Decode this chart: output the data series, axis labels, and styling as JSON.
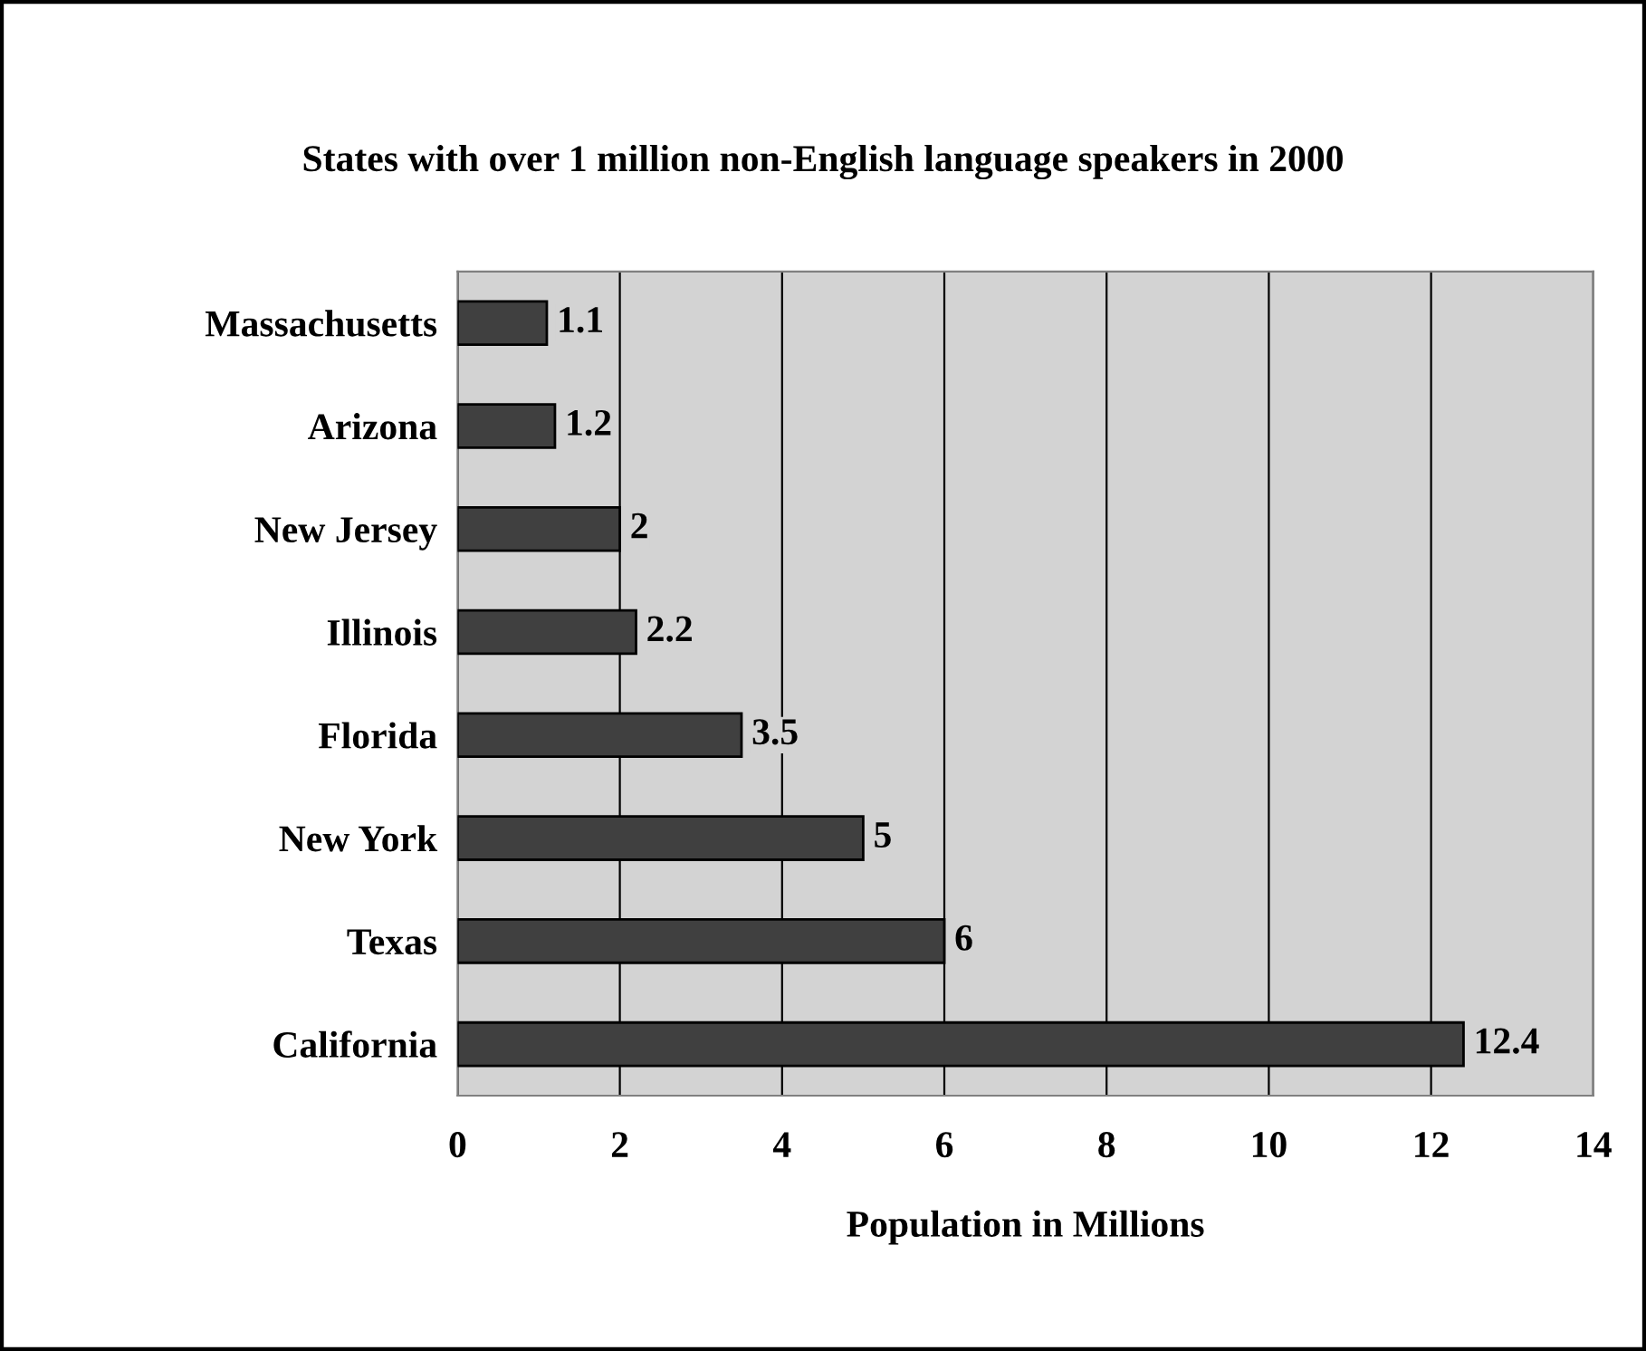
{
  "chart_data": {
    "type": "bar",
    "orientation": "horizontal",
    "title": "States with over 1 million non-English language speakers in 2000",
    "xlabel": "Population in Millions",
    "categories": [
      "Massachusetts",
      "Arizona",
      "New Jersey",
      "Illinois",
      "Florida",
      "New York",
      "Texas",
      "California"
    ],
    "values": [
      1.1,
      1.2,
      2,
      2.2,
      3.5,
      5,
      6,
      12.4
    ],
    "color": "#404040",
    "xlim": [
      0,
      14
    ],
    "xticks": [
      0,
      2,
      4,
      6,
      8,
      10,
      12,
      14
    ],
    "grid": "x",
    "data_labels": true
  }
}
